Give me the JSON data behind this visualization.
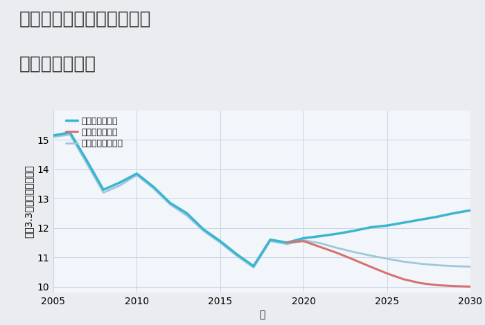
{
  "title_line1": "三重県桑名市長島町大島の",
  "title_line2": "土地の価格推移",
  "xlabel": "年",
  "ylabel": "坪（3.3㎡）単価（万円）",
  "fig_background": "#eaecf0",
  "plot_background": "#f2f5f9",
  "grid_color": "#c5d5e5",
  "xlim": [
    2005,
    2030
  ],
  "ylim": [
    9.8,
    16.0
  ],
  "yticks": [
    10,
    11,
    12,
    13,
    14,
    15
  ],
  "xticks": [
    2005,
    2010,
    2015,
    2020,
    2025,
    2030
  ],
  "good_scenario": {
    "label": "グッドシナリオ",
    "color": "#3ab5d0",
    "linewidth": 2.5,
    "x": [
      2005,
      2006,
      2007,
      2008,
      2009,
      2010,
      2011,
      2012,
      2013,
      2014,
      2015,
      2016,
      2017,
      2018,
      2019,
      2020,
      2021,
      2022,
      2023,
      2024,
      2025,
      2026,
      2027,
      2028,
      2029,
      2030
    ],
    "y": [
      15.15,
      15.25,
      14.3,
      13.3,
      13.55,
      13.85,
      13.4,
      12.85,
      12.5,
      11.95,
      11.55,
      11.1,
      10.7,
      11.6,
      11.5,
      11.65,
      11.72,
      11.8,
      11.9,
      12.02,
      12.08,
      12.18,
      12.28,
      12.38,
      12.5,
      12.6
    ]
  },
  "bad_scenario": {
    "label": "バッドシナリオ",
    "color": "#d97070",
    "linewidth": 2.2,
    "x": [
      2019,
      2020,
      2021,
      2022,
      2023,
      2024,
      2025,
      2026,
      2027,
      2028,
      2029,
      2030
    ],
    "y": [
      11.5,
      11.55,
      11.35,
      11.15,
      10.92,
      10.68,
      10.45,
      10.25,
      10.12,
      10.05,
      10.02,
      10.0
    ]
  },
  "normal_scenario": {
    "label": "ノーマルシナリオ",
    "color": "#9ec8da",
    "linewidth": 2.0,
    "x": [
      2005,
      2006,
      2007,
      2008,
      2009,
      2010,
      2011,
      2012,
      2013,
      2014,
      2015,
      2016,
      2017,
      2018,
      2019,
      2020,
      2021,
      2022,
      2023,
      2024,
      2025,
      2026,
      2027,
      2028,
      2029,
      2030
    ],
    "y": [
      15.1,
      15.18,
      14.2,
      13.2,
      13.45,
      13.8,
      13.35,
      12.8,
      12.42,
      11.9,
      11.5,
      11.05,
      10.65,
      11.55,
      11.45,
      11.58,
      11.48,
      11.32,
      11.18,
      11.06,
      10.95,
      10.85,
      10.78,
      10.73,
      10.7,
      10.68
    ]
  },
  "title_fontsize": 19,
  "axis_label_fontsize": 10,
  "tick_fontsize": 10,
  "legend_fontsize": 9
}
